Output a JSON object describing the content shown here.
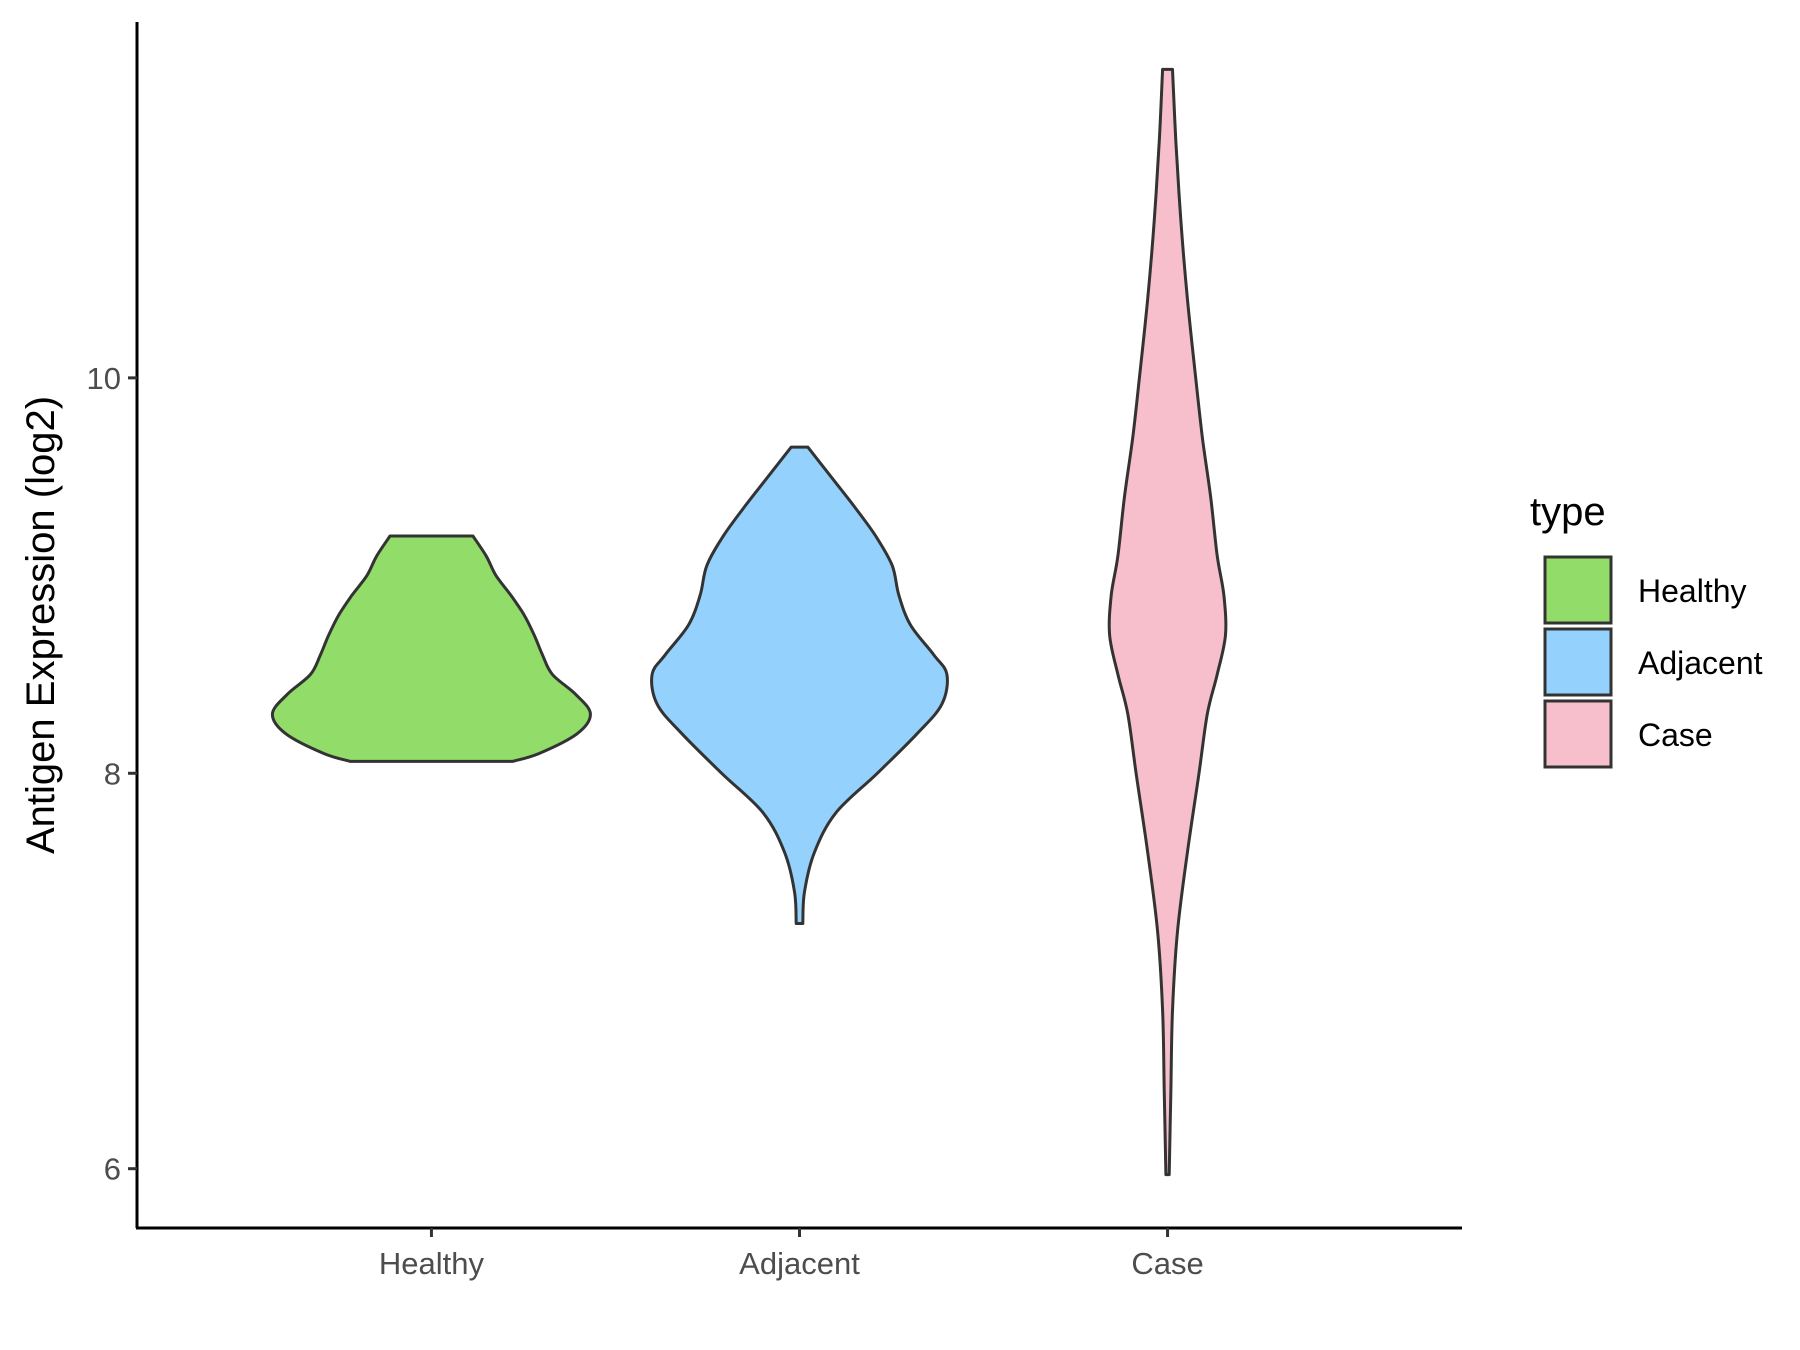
{
  "chart_data": {
    "type": "violin",
    "title": "",
    "xlabel": "",
    "ylabel": "Antigen Expression (log2)",
    "ylim": [
      5.7,
      11.8
    ],
    "y_ticks": [
      "6",
      "8",
      "10"
    ],
    "categories": [
      "Healthy",
      "Adjacent",
      "Case"
    ],
    "legend": {
      "title": "type",
      "position": "right",
      "entries": [
        "Healthy",
        "Adjacent",
        "Case"
      ]
    },
    "colors": {
      "Healthy": "#92dc6a",
      "Adjacent": "#94d2fd",
      "Case": "#f7bfcb",
      "outline": "#333333",
      "axis": "#000000"
    },
    "series": [
      {
        "category": "Healthy",
        "min": 8.06,
        "max": 9.2,
        "profile": [
          [
            8.06,
            0.49
          ],
          [
            8.1,
            0.65
          ],
          [
            8.2,
            0.88
          ],
          [
            8.3,
            0.96
          ],
          [
            8.4,
            0.87
          ],
          [
            8.5,
            0.73
          ],
          [
            8.6,
            0.67
          ],
          [
            8.7,
            0.62
          ],
          [
            8.8,
            0.56
          ],
          [
            8.9,
            0.48
          ],
          [
            9.0,
            0.39
          ],
          [
            9.1,
            0.33
          ],
          [
            9.2,
            0.25
          ]
        ]
      },
      {
        "category": "Adjacent",
        "min": 7.24,
        "max": 9.65,
        "profile": [
          [
            7.24,
            0.02
          ],
          [
            7.4,
            0.03
          ],
          [
            7.6,
            0.09
          ],
          [
            7.8,
            0.22
          ],
          [
            8.0,
            0.47
          ],
          [
            8.2,
            0.71
          ],
          [
            8.35,
            0.86
          ],
          [
            8.5,
            0.89
          ],
          [
            8.6,
            0.81
          ],
          [
            8.75,
            0.67
          ],
          [
            8.9,
            0.6
          ],
          [
            9.05,
            0.56
          ],
          [
            9.2,
            0.46
          ],
          [
            9.35,
            0.33
          ],
          [
            9.5,
            0.19
          ],
          [
            9.65,
            0.05
          ]
        ]
      },
      {
        "category": "Case",
        "min": 5.97,
        "max": 11.56,
        "profile": [
          [
            5.97,
            0.01
          ],
          [
            6.4,
            0.02
          ],
          [
            6.8,
            0.03
          ],
          [
            7.2,
            0.06
          ],
          [
            7.6,
            0.12
          ],
          [
            8.0,
            0.19
          ],
          [
            8.3,
            0.24
          ],
          [
            8.5,
            0.3
          ],
          [
            8.7,
            0.35
          ],
          [
            8.9,
            0.34
          ],
          [
            9.1,
            0.3
          ],
          [
            9.4,
            0.26
          ],
          [
            9.7,
            0.21
          ],
          [
            10.0,
            0.17
          ],
          [
            10.4,
            0.12
          ],
          [
            10.8,
            0.08
          ],
          [
            11.2,
            0.05
          ],
          [
            11.56,
            0.03
          ]
        ]
      }
    ]
  }
}
